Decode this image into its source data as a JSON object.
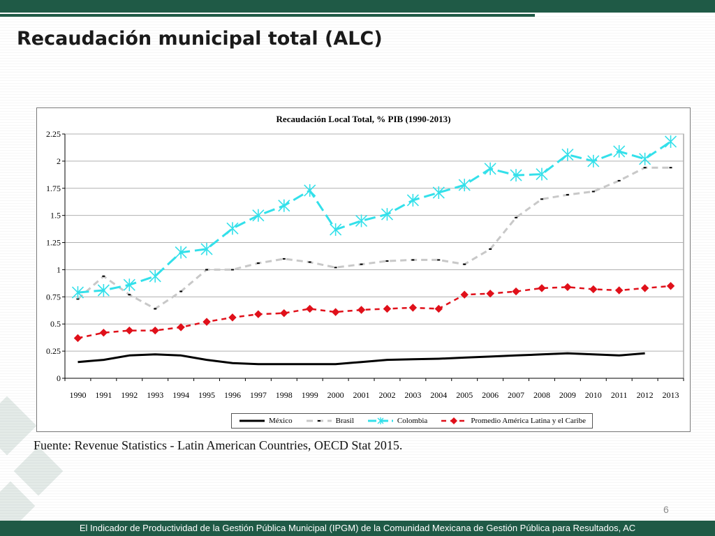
{
  "slide": {
    "title": "Recaudación municipal total (ALC)",
    "source": "Fuente: Revenue Statistics - Latin American Countries, OECD Stat 2015.",
    "page_number": "6",
    "footer": "El Indicador de Productividad de la Gestión Pública Municipal (IPGM) de la Comunidad Mexicana de Gestión Pública para Resultados, AC"
  },
  "colors": {
    "brand_green": "#1f5a46",
    "mexico": "#000000",
    "brasil": "#c8c8c8",
    "colombia": "#33e0ea",
    "promedio": "#e0101a"
  },
  "chart_data": {
    "type": "line",
    "title": "Recaudación Local Total, % PIB (1990-2013)",
    "xlabel": "",
    "ylabel": "",
    "ylim": [
      0,
      2.25
    ],
    "yticks": [
      "0",
      "0.25",
      "0.5",
      "0.75",
      "1",
      "1.25",
      "1.5",
      "1.75",
      "2",
      "2.25"
    ],
    "grid": true,
    "legend_position": "bottom",
    "categories": [
      "1990",
      "1991",
      "1992",
      "1993",
      "1994",
      "1995",
      "1996",
      "1997",
      "1998",
      "1999",
      "2000",
      "2001",
      "2002",
      "2003",
      "2004",
      "2005",
      "2006",
      "2007",
      "2008",
      "2009",
      "2010",
      "2011",
      "2012",
      "2013"
    ],
    "series": [
      {
        "name": "México",
        "values": [
          0.15,
          0.17,
          0.21,
          0.22,
          0.21,
          0.17,
          0.14,
          0.13,
          0.13,
          0.13,
          0.13,
          0.15,
          0.17,
          0.175,
          0.18,
          0.19,
          0.2,
          0.21,
          0.22,
          0.23,
          0.22,
          0.21,
          0.23,
          null
        ]
      },
      {
        "name": "Brasil",
        "values": [
          0.73,
          0.94,
          0.77,
          0.64,
          0.8,
          1.0,
          1.0,
          1.06,
          1.1,
          1.07,
          1.02,
          1.05,
          1.08,
          1.09,
          1.09,
          1.05,
          1.19,
          1.48,
          1.65,
          1.69,
          1.72,
          1.82,
          1.94,
          1.94
        ]
      },
      {
        "name": "Colombia",
        "values": [
          0.79,
          0.81,
          0.86,
          0.94,
          1.16,
          1.19,
          1.38,
          1.5,
          1.59,
          1.73,
          1.37,
          1.45,
          1.51,
          1.64,
          1.71,
          1.78,
          1.93,
          1.87,
          1.88,
          2.06,
          2.0,
          2.09,
          2.02,
          2.18
        ]
      },
      {
        "name": "Promedio América Latina y el Caribe",
        "values": [
          0.37,
          0.42,
          0.44,
          0.44,
          0.47,
          0.52,
          0.56,
          0.59,
          0.6,
          0.64,
          0.61,
          0.63,
          0.64,
          0.65,
          0.64,
          0.77,
          0.78,
          0.8,
          0.83,
          0.84,
          0.82,
          0.81,
          0.83,
          0.85
        ]
      }
    ]
  }
}
